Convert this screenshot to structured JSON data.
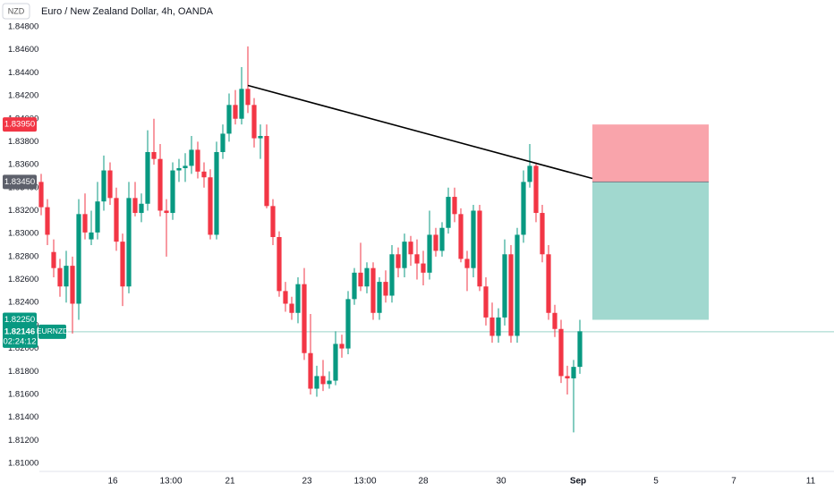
{
  "chart_data": {
    "type": "candlestick",
    "title": "Euro / New Zealand Dollar, 4h, OANDA",
    "currency": "NZD",
    "symbol": "EURNZD",
    "countdown": "02:24:12",
    "up_color": "#089981",
    "down_color": "#f23645",
    "open": [
      1.8345,
      1.8323,
      1.8284,
      1.827,
      1.8254,
      1.8272,
      1.8239,
      1.8317,
      1.8295,
      1.8301,
      1.8328,
      1.8355,
      1.8331,
      1.8293,
      1.8254,
      1.8331,
      1.8318,
      1.8326,
      1.8371,
      1.8365,
      1.832,
      1.8318,
      1.8355,
      1.8357,
      1.8359,
      1.8373,
      1.8354,
      1.8349,
      1.8299,
      1.8371,
      1.8387,
      1.8412,
      1.84,
      1.8426,
      1.8412,
      1.8383,
      1.8385,
      1.8324,
      1.8297,
      1.825,
      1.8239,
      1.8231,
      1.8256,
      1.8196,
      1.8165,
      1.8176,
      1.8169,
      1.8172,
      1.8204,
      1.82,
      1.8243,
      1.8266,
      1.8254,
      1.827,
      1.8231,
      1.8258,
      1.8246,
      1.8282,
      1.827,
      1.8293,
      1.8282,
      1.8274,
      1.8266,
      1.8299,
      1.8285,
      1.8305,
      1.8332,
      1.8317,
      1.8278,
      1.827,
      1.832,
      1.8254,
      1.8227,
      1.8211,
      1.8227,
      1.8282,
      1.8211,
      1.8299,
      1.8345,
      1.8359,
      1.8318,
      1.8282,
      1.8231,
      1.8217,
      1.8176,
      1.8174,
      1.8184
    ],
    "high": [
      1.8352,
      1.833,
      1.8295,
      1.8278,
      1.8285,
      1.828,
      1.833,
      1.8335,
      1.832,
      1.8345,
      1.8368,
      1.8362,
      1.834,
      1.83,
      1.8345,
      1.8345,
      1.8335,
      1.839,
      1.84,
      1.8378,
      1.833,
      1.8362,
      1.8365,
      1.837,
      1.8385,
      1.838,
      1.8362,
      1.8356,
      1.838,
      1.8395,
      1.8422,
      1.8425,
      1.8445,
      1.8463,
      1.8418,
      1.8395,
      1.8395,
      1.833,
      1.8302,
      1.8258,
      1.8245,
      1.8262,
      1.827,
      1.823,
      1.8185,
      1.819,
      1.818,
      1.8215,
      1.8212,
      1.825,
      1.827,
      1.8292,
      1.8275,
      1.8275,
      1.8262,
      1.8268,
      1.829,
      1.8288,
      1.83,
      1.8298,
      1.8295,
      1.8285,
      1.832,
      1.8305,
      1.831,
      1.834,
      1.834,
      1.8322,
      1.8285,
      1.8325,
      1.8325,
      1.8262,
      1.824,
      1.8235,
      1.8295,
      1.829,
      1.8305,
      1.8355,
      1.8378,
      1.8362,
      1.8325,
      1.829,
      1.8238,
      1.8225,
      1.8185,
      1.819,
      1.8225
    ],
    "low": [
      1.8316,
      1.829,
      1.8262,
      1.8245,
      1.824,
      1.8213,
      1.8225,
      1.8295,
      1.829,
      1.8295,
      1.832,
      1.8325,
      1.8285,
      1.8237,
      1.8248,
      1.8315,
      1.831,
      1.832,
      1.836,
      1.8315,
      1.828,
      1.8312,
      1.8345,
      1.8345,
      1.8352,
      1.8348,
      1.834,
      1.8295,
      1.8295,
      1.8365,
      1.838,
      1.8395,
      1.8395,
      1.8405,
      1.8375,
      1.8365,
      1.8322,
      1.829,
      1.8245,
      1.8232,
      1.8225,
      1.8222,
      1.819,
      1.816,
      1.8158,
      1.8163,
      1.8165,
      1.8168,
      1.8192,
      1.8195,
      1.8238,
      1.825,
      1.8248,
      1.8225,
      1.8225,
      1.824,
      1.824,
      1.8262,
      1.8262,
      1.8272,
      1.826,
      1.8255,
      1.826,
      1.828,
      1.828,
      1.83,
      1.831,
      1.8275,
      1.825,
      1.8262,
      1.825,
      1.822,
      1.8205,
      1.8205,
      1.822,
      1.8205,
      1.8205,
      1.8292,
      1.834,
      1.831,
      1.8275,
      1.8225,
      1.821,
      1.817,
      1.816,
      1.8127,
      1.8178
    ],
    "close": [
      1.8323,
      1.8299,
      1.827,
      1.8254,
      1.8272,
      1.8239,
      1.8317,
      1.8301,
      1.8301,
      1.8328,
      1.8355,
      1.8331,
      1.8293,
      1.8254,
      1.8331,
      1.8318,
      1.8326,
      1.8371,
      1.8365,
      1.832,
      1.8318,
      1.8355,
      1.8357,
      1.8359,
      1.8373,
      1.8354,
      1.8349,
      1.8299,
      1.8371,
      1.8387,
      1.8412,
      1.84,
      1.8426,
      1.8412,
      1.8383,
      1.8385,
      1.8324,
      1.8297,
      1.825,
      1.8239,
      1.8231,
      1.8256,
      1.8196,
      1.8165,
      1.8176,
      1.8169,
      1.8172,
      1.8204,
      1.82,
      1.8243,
      1.8266,
      1.8254,
      1.827,
      1.8231,
      1.8258,
      1.8246,
      1.8282,
      1.827,
      1.8293,
      1.8282,
      1.8274,
      1.8266,
      1.8299,
      1.8285,
      1.8305,
      1.8332,
      1.8317,
      1.8278,
      1.827,
      1.832,
      1.8254,
      1.8227,
      1.8211,
      1.8227,
      1.8282,
      1.8211,
      1.8299,
      1.8345,
      1.8359,
      1.8318,
      1.8282,
      1.8231,
      1.8217,
      1.8176,
      1.8174,
      1.8184,
      1.8215
    ],
    "ylim": [
      1.81,
      1.848
    ],
    "yticks": [
      {
        "value": 1.848,
        "label": "1.84800"
      },
      {
        "value": 1.846,
        "label": "1.84600"
      },
      {
        "value": 1.844,
        "label": "1.84400"
      },
      {
        "value": 1.842,
        "label": "1.84200"
      },
      {
        "value": 1.84,
        "label": "1.84000"
      },
      {
        "value": 1.838,
        "label": "1.83800"
      },
      {
        "value": 1.836,
        "label": "1.83600"
      },
      {
        "value": 1.834,
        "label": "1.83400"
      },
      {
        "value": 1.832,
        "label": "1.83200"
      },
      {
        "value": 1.83,
        "label": "1.83000"
      },
      {
        "value": 1.828,
        "label": "1.82800"
      },
      {
        "value": 1.826,
        "label": "1.82600"
      },
      {
        "value": 1.824,
        "label": "1.82400"
      },
      {
        "value": 1.822,
        "label": "1.82200"
      },
      {
        "value": 1.82,
        "label": "1.82000"
      },
      {
        "value": 1.818,
        "label": "1.81800"
      },
      {
        "value": 1.816,
        "label": "1.81600"
      },
      {
        "value": 1.814,
        "label": "1.81400"
      },
      {
        "value": 1.812,
        "label": "1.81200"
      },
      {
        "value": 1.81,
        "label": "1.81000"
      }
    ],
    "xticks": [
      "16",
      "13:00",
      "21",
      "23",
      "13:00",
      "28",
      "30",
      "Sep",
      "5",
      "7",
      "11"
    ],
    "last_price": {
      "value": 1.82146,
      "label": "1.82146"
    },
    "trendline": {
      "start": [
        33,
        1.8429
      ],
      "end": [
        87,
        1.8348
      ]
    },
    "position": {
      "stop": {
        "value": 1.8395,
        "label": "1.83950"
      },
      "entry": {
        "value": 1.8345,
        "label": "1.83450"
      },
      "target": {
        "value": 1.8225,
        "label": "1.82250"
      }
    }
  }
}
